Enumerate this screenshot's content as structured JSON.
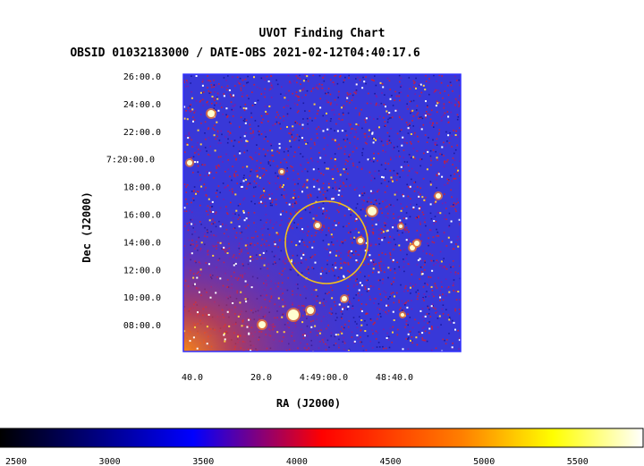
{
  "chart_data": {
    "type": "heatmap",
    "title": "UVOT Finding Chart",
    "subtitle": "OBSID 01032183000 / DATE-OBS 2021-02-12T04:40:17.6",
    "xlabel": "RA (J2000)",
    "ylabel": "Dec (J2000)",
    "x_ticks": [
      "40.0",
      "20.0",
      "4:49:00.0",
      "48:40.0"
    ],
    "y_ticks": [
      "26:00.0",
      "24:00.0",
      "22:00.0",
      "7:20:00.0",
      "18:00.0",
      "16:00.0",
      "14:00.0",
      "12:00.0",
      "10:00.0",
      "08:00.0"
    ],
    "colorbar": {
      "ticks": [
        2500,
        3000,
        3500,
        4000,
        4500,
        5000,
        5500
      ],
      "range": [
        2500,
        5900
      ],
      "colormap": [
        "#000000",
        "#0000ff",
        "#ff0000",
        "#ffff00",
        "#ffffff"
      ]
    },
    "region": {
      "shape": "circle",
      "color": "#f0c020"
    },
    "colors": {
      "frame": "#3030ff",
      "background": "#3838d8"
    }
  }
}
